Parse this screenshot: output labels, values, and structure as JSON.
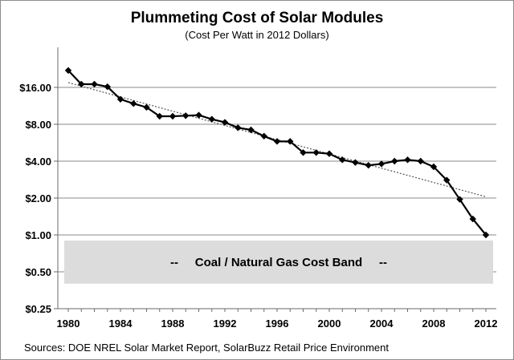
{
  "chart_data": {
    "type": "line",
    "title": "Plummeting Cost of Solar Modules",
    "subtitle": "(Cost Per Watt in 2012 Dollars)",
    "source": "Sources:  DOE NREL Solar Market Report, SolarBuzz Retail Price Environment",
    "y_scale": "log2",
    "ylim": [
      0.25,
      32
    ],
    "xlim": [
      1980,
      2012
    ],
    "y_ticks": [
      0.25,
      0.5,
      1,
      2,
      4,
      8,
      16
    ],
    "y_tick_labels": [
      "$0.25",
      "$0.50",
      "$1.00",
      "$2.00",
      "$4.00",
      "$8.00",
      "$16.00"
    ],
    "x_ticks": [
      1980,
      1984,
      1988,
      1992,
      1996,
      2000,
      2004,
      2008,
      2012
    ],
    "x_tick_labels": [
      "1980",
      "1984",
      "1988",
      "1992",
      "1996",
      "2000",
      "2004",
      "2008",
      "2012"
    ],
    "grid": true,
    "series": [
      {
        "color": "#000000",
        "marker": "diamond",
        "x": [
          1980,
          1981,
          1982,
          1983,
          1984,
          1985,
          1986,
          1987,
          1988,
          1989,
          1990,
          1991,
          1992,
          1993,
          1994,
          1995,
          1996,
          1997,
          1998,
          1999,
          2000,
          2001,
          2002,
          2003,
          2004,
          2005,
          2006,
          2007,
          2008,
          2009,
          2010,
          2011,
          2012
        ],
        "y": [
          22.0,
          17.0,
          17.0,
          16.2,
          12.8,
          11.8,
          11.0,
          9.3,
          9.3,
          9.4,
          9.5,
          8.8,
          8.3,
          7.5,
          7.2,
          6.4,
          5.8,
          5.8,
          4.7,
          4.7,
          4.6,
          4.1,
          3.9,
          3.7,
          3.8,
          4.0,
          4.1,
          4.0,
          3.6,
          2.8,
          1.95,
          1.35,
          1.0
        ]
      }
    ],
    "trendline": {
      "style": "dotted",
      "color": "#555555",
      "x": [
        1980,
        2012
      ],
      "y": [
        17.5,
        2.05
      ]
    },
    "band": {
      "label": "--     Coal / Natural Gas Cost Band     --",
      "y_range": [
        0.4,
        0.9
      ],
      "color": "#dcdcdc"
    }
  }
}
